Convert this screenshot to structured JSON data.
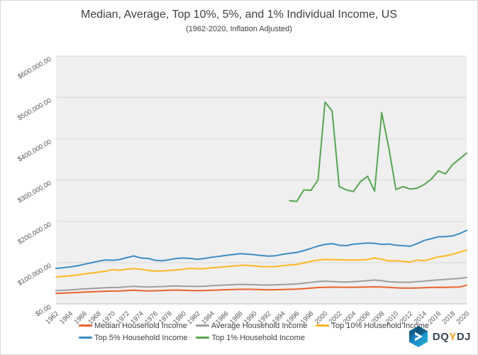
{
  "chart_data": {
    "type": "line",
    "title": "Median, Average, Top 10%, 5%, and 1% Individual Income, US",
    "subtitle": "(1962-2020, Inflation Adjusted)",
    "x_start_year": 1962,
    "x_end_year": 2020,
    "x_tick_labels": [
      "1962",
      "1964",
      "1966",
      "1968",
      "1970",
      "1972",
      "1974",
      "1976",
      "1978",
      "1980",
      "1982",
      "1984",
      "1986",
      "1988",
      "1990",
      "1992",
      "1994",
      "1996",
      "1998",
      "2000",
      "2002",
      "2004",
      "2006",
      "2008",
      "2010",
      "2012",
      "2014",
      "2016",
      "2018",
      "2020"
    ],
    "ylim": [
      0,
      600000
    ],
    "y_tick_step": 100000,
    "y_tick_labels": [
      "$0.00",
      "$100,000.00",
      "$200,000.00",
      "$300,000.00",
      "$400,000.00",
      "$500,000.00",
      "$600,000.00"
    ],
    "grid": "horizontal",
    "legend_position": "bottom",
    "plot_bg": "#efefef",
    "grid_color": "#d9d9d9",
    "axis_color": "#bfbfbf",
    "tick_label_color": "#595959",
    "series": [
      {
        "name": "Median Household Income",
        "color": "#e8632e",
        "start_year": 1962,
        "values": [
          25500,
          26000,
          26800,
          27500,
          28500,
          29200,
          30000,
          30800,
          31000,
          31200,
          32200,
          33000,
          32000,
          31500,
          31800,
          32200,
          33000,
          33500,
          32800,
          32300,
          32000,
          32300,
          33000,
          33600,
          34300,
          34800,
          35200,
          35500,
          35000,
          34500,
          34200,
          34400,
          34800,
          35200,
          35800,
          36800,
          38200,
          39500,
          40200,
          40500,
          40300,
          40200,
          40300,
          40500,
          40800,
          41200,
          40800,
          39800,
          38800,
          38300,
          38200,
          38500,
          39000,
          39800,
          40300,
          40000,
          40500,
          41000,
          45000
        ]
      },
      {
        "name": "Average Household Income",
        "color": "#9e9e9e",
        "start_year": 1962,
        "values": [
          32000,
          32800,
          33800,
          35000,
          36200,
          37200,
          38300,
          39200,
          39500,
          40000,
          41500,
          42500,
          41500,
          41000,
          41500,
          42000,
          43000,
          43500,
          42800,
          42500,
          42300,
          42800,
          44000,
          44800,
          45800,
          46500,
          47200,
          47000,
          46500,
          45800,
          45500,
          46000,
          46800,
          47500,
          48300,
          50000,
          52000,
          54000,
          55000,
          54200,
          53200,
          53000,
          53800,
          54800,
          56200,
          57800,
          56000,
          53500,
          53000,
          52200,
          52500,
          53800,
          55000,
          56800,
          58000,
          59200,
          60500,
          61800,
          64000
        ]
      },
      {
        "name": "Top 10% Household Income",
        "color": "#fcb723",
        "start_year": 1962,
        "values": [
          65000,
          66500,
          68000,
          70000,
          72500,
          74500,
          77000,
          79000,
          83000,
          81500,
          84000,
          85500,
          84000,
          81000,
          79500,
          79800,
          81000,
          82000,
          84000,
          86000,
          85000,
          85500,
          87500,
          88500,
          90000,
          91500,
          93000,
          93500,
          92000,
          90500,
          90000,
          90500,
          92500,
          94000,
          95500,
          99000,
          103000,
          106000,
          107500,
          107000,
          107000,
          106000,
          106000,
          106500,
          107500,
          111000,
          108000,
          104000,
          104500,
          103000,
          101000,
          106000,
          104500,
          109000,
          114000,
          116000,
          120000,
          125000,
          130500
        ]
      },
      {
        "name": "Top 5% Household Income",
        "color": "#3c8dc5",
        "start_year": 1962,
        "values": [
          86000,
          87500,
          89500,
          92000,
          96000,
          99500,
          103500,
          106500,
          105500,
          107500,
          112000,
          116000,
          111000,
          110000,
          105500,
          104500,
          107000,
          110000,
          111000,
          110000,
          108000,
          110000,
          113000,
          115000,
          117500,
          119500,
          121500,
          120500,
          119000,
          117000,
          115500,
          116500,
          120000,
          122500,
          124500,
          129000,
          134500,
          140000,
          144000,
          146000,
          142000,
          141000,
          144500,
          146000,
          147500,
          146500,
          144000,
          145000,
          142000,
          141000,
          139500,
          146000,
          153500,
          158000,
          162500,
          163000,
          164500,
          170000,
          178000
        ]
      },
      {
        "name": "Top 1% Household Income",
        "color": "#57a651",
        "start_year": 1995,
        "values": [
          250000,
          248000,
          276000,
          275000,
          300000,
          489000,
          467000,
          284000,
          276000,
          272000,
          296000,
          309000,
          273000,
          463000,
          378000,
          277000,
          284000,
          278000,
          280000,
          289000,
          302000,
          322000,
          315000,
          337000,
          351000,
          365000
        ]
      }
    ]
  },
  "branding": {
    "logo_prefix": "DQ",
    "logo_accent": "Y",
    "logo_suffix": "DJ",
    "icon": "dqydj-hexagon-arrow",
    "icon_colors": {
      "dark": "#123a55",
      "blue": "#1386c6",
      "teal": "#2cb5d4"
    }
  }
}
